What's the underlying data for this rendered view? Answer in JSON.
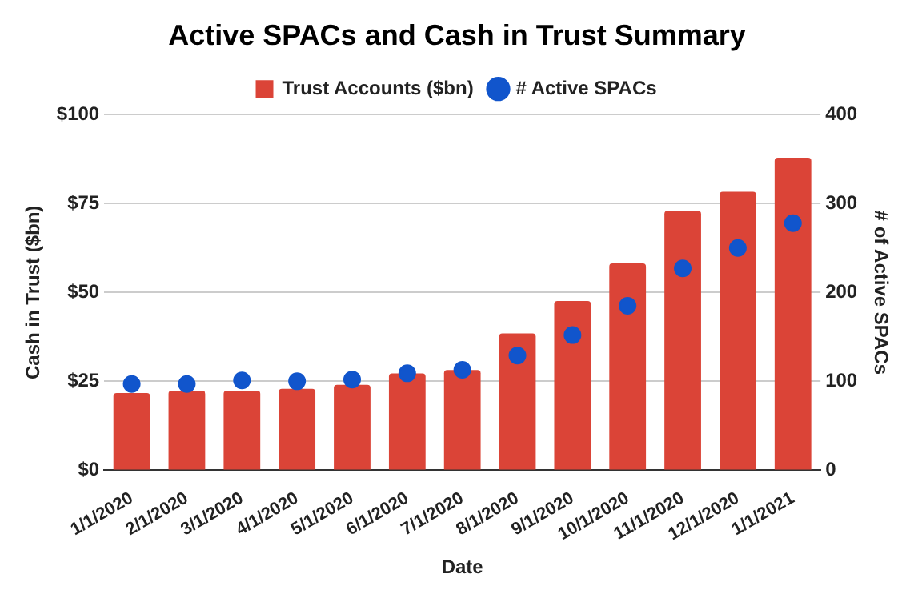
{
  "chart_data": {
    "type": "bar",
    "title": "Active SPACs and Cash in Trust Summary",
    "xlabel": "Date",
    "ylabel": "Cash in Trust ($bn)",
    "y2label": "# of Active SPACs",
    "categories": [
      "1/1/2020",
      "2/1/2020",
      "3/1/2020",
      "4/1/2020",
      "5/1/2020",
      "6/1/2020",
      "7/1/2020",
      "8/1/2020",
      "9/1/2020",
      "10/1/2020",
      "11/1/2020",
      "12/1/2020",
      "1/1/2021"
    ],
    "series": [
      {
        "name": "Trust Accounts ($bn)",
        "color": "#db4437",
        "values": [
          21.7,
          22.4,
          22.4,
          22.9,
          24,
          27.2,
          28.2,
          38.5,
          47.6,
          58.2,
          73,
          78.3,
          87.9
        ]
      },
      {
        "name": "# Active SPACs",
        "type": "scatter",
        "axis": "y2",
        "color": "#1155cc",
        "marker": "circle",
        "values": [
          97,
          97,
          101,
          100,
          102,
          109,
          113,
          129,
          152,
          185,
          227,
          250,
          278
        ]
      }
    ],
    "ylim": [
      0,
      100
    ],
    "yticks": [
      {
        "value": 0,
        "label": "$0"
      },
      {
        "value": 25,
        "label": "$25"
      },
      {
        "value": 50,
        "label": "$50"
      },
      {
        "value": 75,
        "label": "$75"
      },
      {
        "value": 100,
        "label": "$100"
      }
    ],
    "y2lim": [
      0,
      400
    ],
    "y2ticks": [
      0,
      100,
      200,
      300,
      400
    ],
    "grid": "y",
    "legend": "top"
  }
}
